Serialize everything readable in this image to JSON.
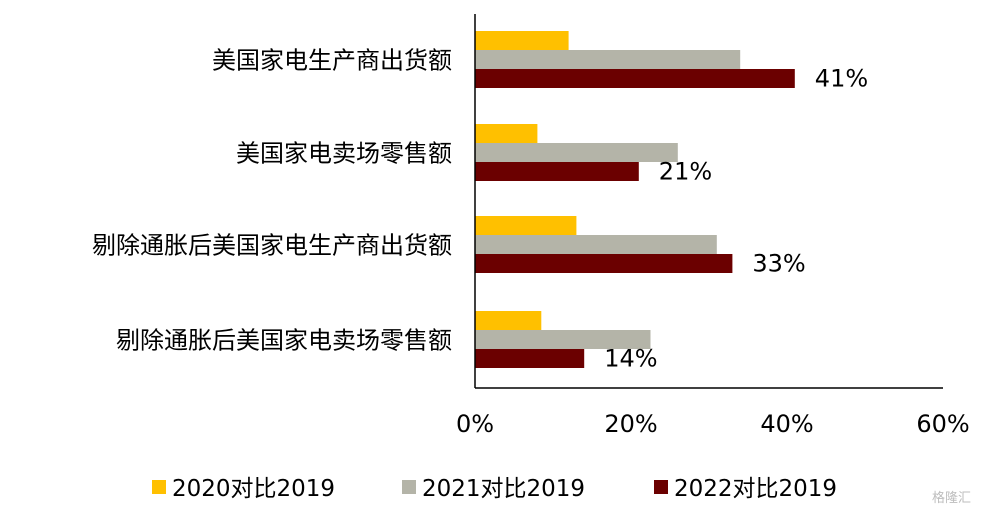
{
  "watermark": "格隆汇",
  "chart_data": {
    "type": "bar",
    "orientation": "horizontal",
    "categories": [
      "美国家电生产商出货额",
      "美国家电卖场零售额",
      "剔除通胀后美国家电生产商出货额",
      "剔除通胀后美国家电卖场零售额"
    ],
    "series": [
      {
        "name": "2020对比2019",
        "color": "#FFC000",
        "values": [
          12,
          8,
          13,
          8.5
        ]
      },
      {
        "name": "2021对比2019",
        "color": "#B4B4A8",
        "values": [
          34,
          26,
          31,
          22.5
        ]
      },
      {
        "name": "2022对比2019",
        "color": "#6B0000",
        "values": [
          41,
          21,
          33,
          14
        ]
      }
    ],
    "data_labels": [
      "41%",
      "21%",
      "33%",
      "14%"
    ],
    "xlim": [
      0,
      60
    ],
    "xticks": [
      "0%",
      "20%",
      "40%",
      "60%"
    ],
    "grid": false,
    "legend": "bottom",
    "title": "",
    "xlabel": "",
    "ylabel": ""
  }
}
